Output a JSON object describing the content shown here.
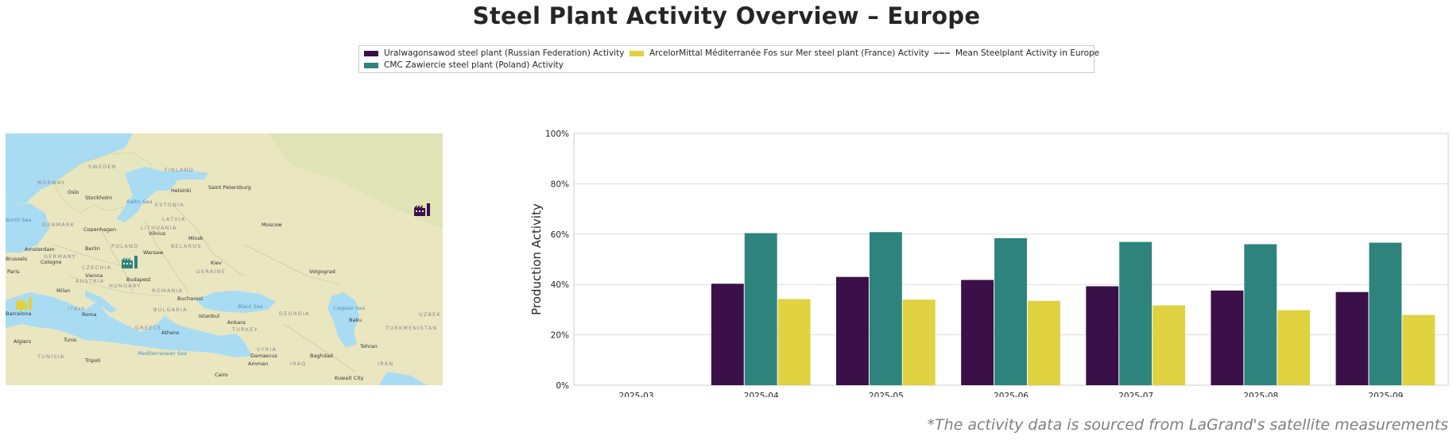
{
  "title": "Steel Plant Activity Overview – Europe",
  "footnote": "*The activity data is sourced from LaGrand's satellite measurements",
  "colors": {
    "russia": "#3b0f48",
    "poland": "#2e837d",
    "france": "#e0d240",
    "mean": "#7f7f7f",
    "grid": "#dddddd",
    "axis": "#cccccc"
  },
  "legend": {
    "items": [
      {
        "label": "Uralwagonsawod steel plant (Russian Federation) Activity",
        "color": "#3b0f48",
        "kind": "patch"
      },
      {
        "label": "CMC Zawiercie steel plant (Poland) Activity",
        "color": "#2e837d",
        "kind": "patch"
      },
      {
        "label": "ArcelorMittal Méditerranée Fos sur Mer steel plant (France) Activity",
        "color": "#e0d240",
        "kind": "patch"
      },
      {
        "label": "Mean Steelplant Activity in Europe",
        "color": "#7f7f7f",
        "kind": "dashed-line"
      }
    ]
  },
  "map": {
    "labels": {
      "countries": [
        "SWEDEN",
        "FINLAND",
        "NORWAY",
        "ESTONIA",
        "LATVIA",
        "LITHUANIA",
        "DENMARK",
        "BELARUS",
        "POLAND",
        "GERMANY",
        "CZECHIA",
        "AUSTRIA",
        "HUNGARY",
        "UKRAINE",
        "ROMANIA",
        "BULGARIA",
        "ITALY",
        "GREECE",
        "TURKEY",
        "GEORGIA",
        "SYRIA",
        "IRAQ",
        "IRAN",
        "TUNISIA",
        "TURKMENISTAN",
        "UZBEK"
      ],
      "cities": [
        "Oslo",
        "Stockholm",
        "Helsinki",
        "Saint Petersburg",
        "Copenhagen",
        "Minsk",
        "Moscow",
        "Vilnius",
        "Amsterdam",
        "Berlin",
        "Warsaw",
        "Brussels",
        "Cologne",
        "Paris",
        "Kiev",
        "Volgograd",
        "Vienna",
        "Budapest",
        "Milan",
        "Bucharest",
        "Barcelona",
        "Roma",
        "Istanbul",
        "Ankara",
        "Baku",
        "Tehran",
        "Algiers",
        "Tunis",
        "Tripoli",
        "Athens",
        "Damascus",
        "Baghdad",
        "Amman",
        "Cairo",
        "Kuwait City"
      ],
      "seas": [
        "Baltic Sea",
        "Black Sea",
        "Caspian Sea",
        "Mediterranean Sea",
        "North Sea"
      ]
    },
    "markers": [
      {
        "name": "Uralwagonsawod steel plant",
        "color": "#3b0f48",
        "icon": "factory-icon"
      },
      {
        "name": "CMC Zawiercie steel plant",
        "color": "#2e837d",
        "icon": "factory-icon"
      },
      {
        "name": "ArcelorMittal Méditerranée Fos sur Mer steel plant",
        "color": "#e0d240",
        "icon": "factory-icon"
      }
    ]
  },
  "chart_data": {
    "type": "bar",
    "ylabel": "Production Activity",
    "xlabel": "",
    "ylim": [
      0,
      100
    ],
    "yticks": [
      "0%",
      "20%",
      "40%",
      "60%",
      "80%",
      "100%"
    ],
    "grid": true,
    "legend_position": "top-center",
    "categories": [
      "2025-03",
      "2025-04",
      "2025-05",
      "2025-06",
      "2025-07",
      "2025-08",
      "2025-09"
    ],
    "series": [
      {
        "name": "Uralwagonsawod steel plant (Russian Federation) Activity",
        "color": "#3b0f48",
        "values": [
          null,
          40.3,
          43.0,
          41.8,
          39.3,
          37.6,
          37.0
        ]
      },
      {
        "name": "CMC Zawiercie steel plant (Poland) Activity",
        "color": "#2e837d",
        "values": [
          null,
          60.4,
          60.8,
          58.4,
          56.9,
          56.0,
          56.6
        ]
      },
      {
        "name": "ArcelorMittal Méditerranée Fos sur Mer steel plant (France) Activity",
        "color": "#e0d240",
        "values": [
          null,
          34.2,
          34.0,
          33.5,
          31.7,
          29.8,
          27.9
        ]
      }
    ]
  }
}
